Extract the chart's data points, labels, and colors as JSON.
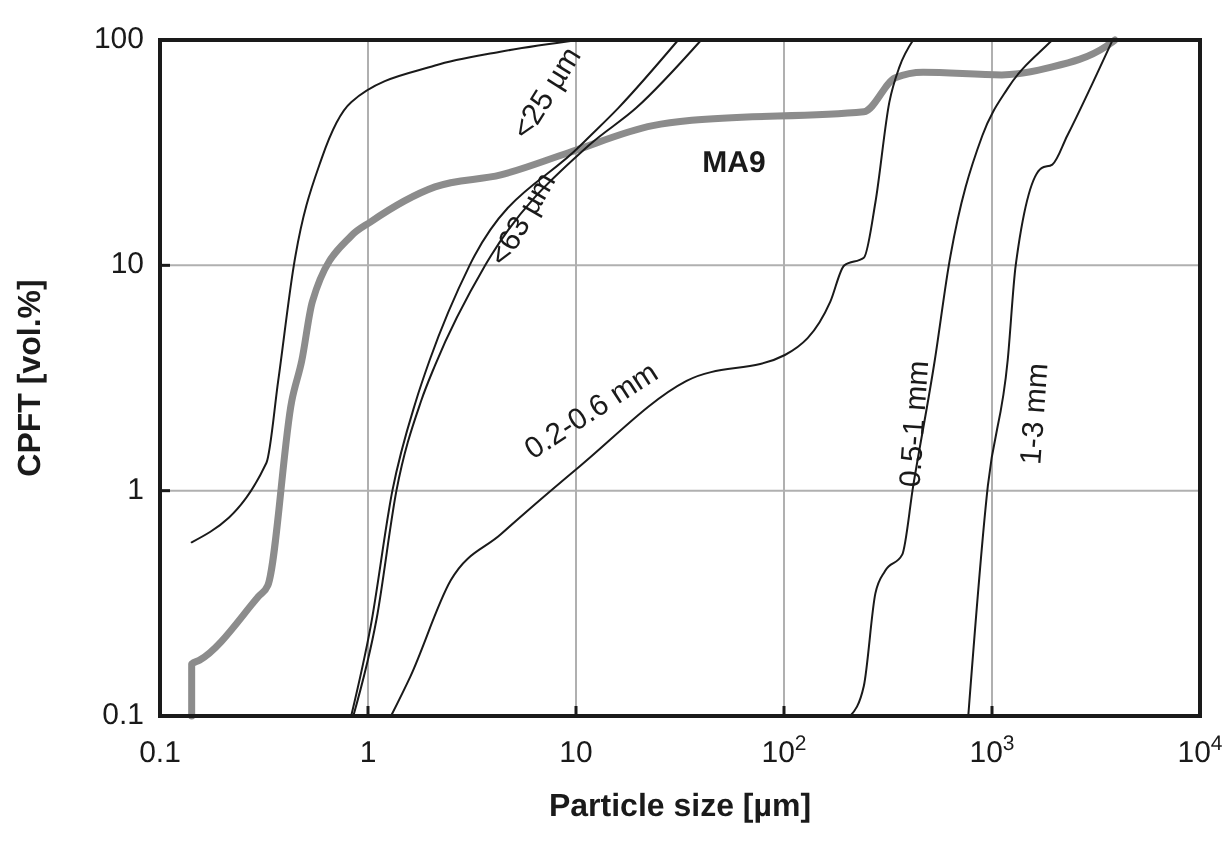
{
  "chart_data": {
    "type": "line",
    "xlabel": "Particle size [µm]",
    "ylabel": "CPFT [vol.%]",
    "log": "xy",
    "grid": true,
    "marker": "none",
    "line_style": "solid",
    "xlim": [
      0.1,
      10000
    ],
    "xticks": [
      0.1,
      1,
      10,
      {
        "value": 100,
        "label": "10$^{2}$"
      },
      {
        "value": 1000,
        "label": "10$^{3}$"
      },
      {
        "value": 10000,
        "label": "10$^{4}$"
      }
    ],
    "ylim": [
      0.1,
      100
    ],
    "yticks": [
      0.1,
      1,
      10,
      100
    ],
    "series": [
      {
        "color": "#1a1a1a",
        "x": [
          0.142,
          0.325,
          0.37,
          0.44,
          0.6,
          0.83,
          2.1,
          4.27,
          10.2
        ],
        "values": [
          0.59,
          1.33,
          3.07,
          10,
          30,
          53,
          77,
          88.5,
          100
        ]
      },
      {
        "name": "MA9",
        "color": "#8c8c8c",
        "x": [
          0.142,
          0.142,
          0.155,
          0.298,
          0.33,
          0.43,
          0.48,
          0.54,
          0.83,
          1.03,
          2.1,
          4.35,
          9.2,
          23.4,
          36,
          242,
          343,
          466,
          1114,
          1840,
          3550,
          3900
        ],
        "values": [
          0.1,
          0.17,
          0.177,
          0.34,
          0.38,
          2.5,
          3.76,
          6.9,
          13.5,
          15.6,
          22.3,
          25.2,
          31.6,
          41.7,
          44,
          48,
          68,
          72,
          70,
          75,
          94,
          100
        ]
      },
      {
        "name": "<25 µm",
        "color": "#1a1a1a",
        "x": [
          0.83,
          1.03,
          1.31,
          1.7,
          1.98,
          3.08,
          10.5,
          16,
          31
        ],
        "values": [
          0.1,
          0.25,
          1,
          2.5,
          3.8,
          10,
          34,
          50,
          100
        ]
      },
      {
        "name": "<63 µm",
        "color": "#1a1a1a",
        "x": [
          0.85,
          1.1,
          1.37,
          1.8,
          2.1,
          3.66,
          11.5,
          19.5,
          40
        ],
        "values": [
          0.1,
          0.27,
          1,
          2.5,
          3.6,
          10,
          34,
          50,
          100
        ]
      },
      {
        "name": "0.2-0.6 mm",
        "color": "#1a1a1a",
        "x": [
          1.29,
          1.6,
          2.5,
          4.35,
          10.4,
          34,
          101,
          167,
          195,
          242,
          275,
          321,
          359,
          418
        ],
        "values": [
          0.1,
          0.15,
          0.4,
          0.64,
          1.28,
          3.07,
          4,
          6.9,
          10,
          10.8,
          19,
          53,
          76,
          100
        ]
      },
      {
        "name": "0.5-1 mm",
        "color": "#1a1a1a",
        "x": [
          208,
          242,
          275,
          306,
          370,
          418,
          531,
          620,
          898,
          1190,
          1840,
          1950
        ],
        "values": [
          0.1,
          0.136,
          0.35,
          0.44,
          0.52,
          1.05,
          3.8,
          10,
          37.6,
          61,
          95,
          100
        ]
      },
      {
        "name": "1-3 mm",
        "color": "#1a1a1a",
        "x": [
          769,
          955,
          1190,
          1300,
          1730,
          1950,
          2300,
          3800
        ],
        "values": [
          0.1,
          1.05,
          3.8,
          10,
          27,
          28,
          37.6,
          100
        ]
      }
    ]
  }
}
